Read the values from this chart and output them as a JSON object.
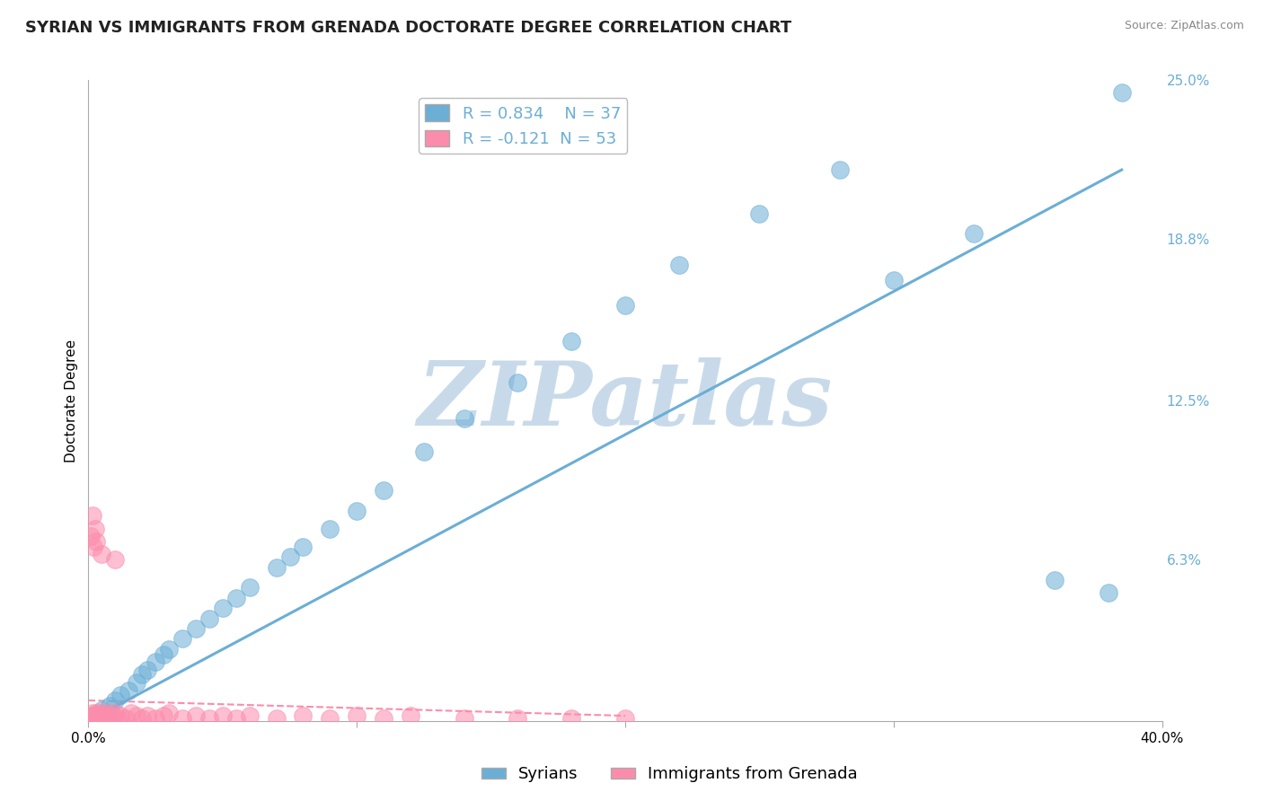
{
  "title": "SYRIAN VS IMMIGRANTS FROM GRENADA DOCTORATE DEGREE CORRELATION CHART",
  "source": "Source: ZipAtlas.com",
  "ylabel": "Doctorate Degree",
  "xlim": [
    0.0,
    40.0
  ],
  "ylim": [
    0.0,
    25.0
  ],
  "yticks_right": [
    0.0,
    6.3,
    12.5,
    18.8,
    25.0
  ],
  "yticklabels_right": [
    "",
    "6.3%",
    "12.5%",
    "18.8%",
    "25.0%"
  ],
  "blue_color": "#6baed6",
  "pink_color": "#fc8cac",
  "blue_R": 0.834,
  "blue_N": 37,
  "pink_R": -0.121,
  "pink_N": 53,
  "legend_label_blue": "Syrians",
  "legend_label_pink": "Immigrants from Grenada",
  "watermark": "ZIPatlas",
  "watermark_color": "#c8daea",
  "blue_scatter_x": [
    0.3,
    0.5,
    0.8,
    1.0,
    1.2,
    1.5,
    1.8,
    2.0,
    2.2,
    2.5,
    2.8,
    3.0,
    3.5,
    4.0,
    4.5,
    5.0,
    5.5,
    6.0,
    7.0,
    7.5,
    8.0,
    9.0,
    10.0,
    11.0,
    12.5,
    14.0,
    16.0,
    18.0,
    20.0,
    22.0,
    25.0,
    28.0,
    30.0,
    33.0,
    36.0,
    38.0,
    38.5
  ],
  "blue_scatter_y": [
    0.2,
    0.4,
    0.6,
    0.8,
    1.0,
    1.2,
    1.5,
    1.8,
    2.0,
    2.3,
    2.6,
    2.8,
    3.2,
    3.6,
    4.0,
    4.4,
    4.8,
    5.2,
    6.0,
    6.4,
    6.8,
    7.5,
    8.2,
    9.0,
    10.5,
    11.8,
    13.2,
    14.8,
    16.2,
    17.8,
    19.8,
    21.5,
    17.2,
    19.0,
    5.5,
    5.0,
    24.5
  ],
  "pink_scatter_x": [
    0.05,
    0.08,
    0.1,
    0.12,
    0.15,
    0.18,
    0.2,
    0.25,
    0.3,
    0.35,
    0.4,
    0.45,
    0.5,
    0.55,
    0.6,
    0.65,
    0.7,
    0.8,
    0.9,
    1.0,
    1.1,
    1.2,
    1.4,
    1.6,
    1.8,
    2.0,
    2.2,
    2.5,
    2.8,
    3.0,
    3.5,
    4.0,
    4.5,
    5.0,
    5.5,
    6.0,
    7.0,
    8.0,
    9.0,
    10.0,
    11.0,
    12.0,
    14.0,
    16.0,
    18.0,
    20.0,
    0.1,
    0.15,
    0.2,
    0.25,
    0.3,
    0.5,
    1.0
  ],
  "pink_scatter_y": [
    0.1,
    0.1,
    0.2,
    0.1,
    0.3,
    0.1,
    0.2,
    0.2,
    0.3,
    0.1,
    0.2,
    0.3,
    0.1,
    0.2,
    0.1,
    0.3,
    0.2,
    0.1,
    0.2,
    0.3,
    0.1,
    0.2,
    0.1,
    0.3,
    0.2,
    0.1,
    0.2,
    0.1,
    0.2,
    0.3,
    0.1,
    0.2,
    0.1,
    0.2,
    0.1,
    0.2,
    0.1,
    0.2,
    0.1,
    0.2,
    0.1,
    0.2,
    0.1,
    0.1,
    0.1,
    0.1,
    7.2,
    8.0,
    6.8,
    7.5,
    7.0,
    6.5,
    6.3
  ],
  "blue_line_x": [
    0.0,
    38.5
  ],
  "blue_line_y": [
    0.0,
    21.5
  ],
  "pink_line_x": [
    0.0,
    20.0
  ],
  "pink_line_y": [
    0.8,
    0.2
  ],
  "background_color": "#ffffff",
  "grid_color": "#cccccc",
  "title_fontsize": 13,
  "axis_label_fontsize": 11,
  "tick_fontsize": 11,
  "legend_fontsize": 13
}
